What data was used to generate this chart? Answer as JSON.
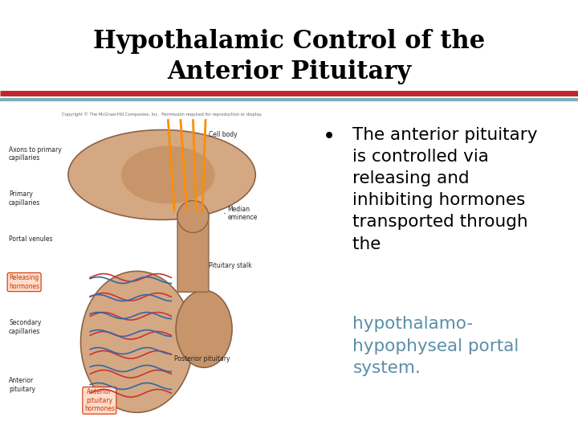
{
  "title_line1": "Hypothalamic Control of the",
  "title_line2": "Anterior Pituitary",
  "title_fontsize": 22,
  "title_color": "#000000",
  "title_font": "DejaVu Serif",
  "separator_red_color": "#C0272D",
  "separator_blue_color": "#7AAFBA",
  "bullet_text_black": "The anterior pituitary\nis controlled via\nreleasing and\ninhibiting hormones\ntransported through\nthe ",
  "bullet_text_colored": "hypothalamo-\nhypophyseal portal\nsystem.",
  "bullet_colored_color": "#5B8FA8",
  "bullet_fontsize": 15.5,
  "background_color": "#FFFFFF",
  "img_bg": "#F5EFE6",
  "brain_color": "#D4A882",
  "brain_edge": "#8B6347",
  "stalk_color": "#C8956A",
  "vessel_red": "#CC3333",
  "vessel_blue": "#3366AA",
  "axon_color": "#FF8C00",
  "label_color": "#222222",
  "release_box_color": "#CC3300",
  "release_box_bg": "#FFDDCC",
  "copyright_text": "Copyright © The McGraw-Hill Companies, Inc.  Permission required for reproduction or display."
}
